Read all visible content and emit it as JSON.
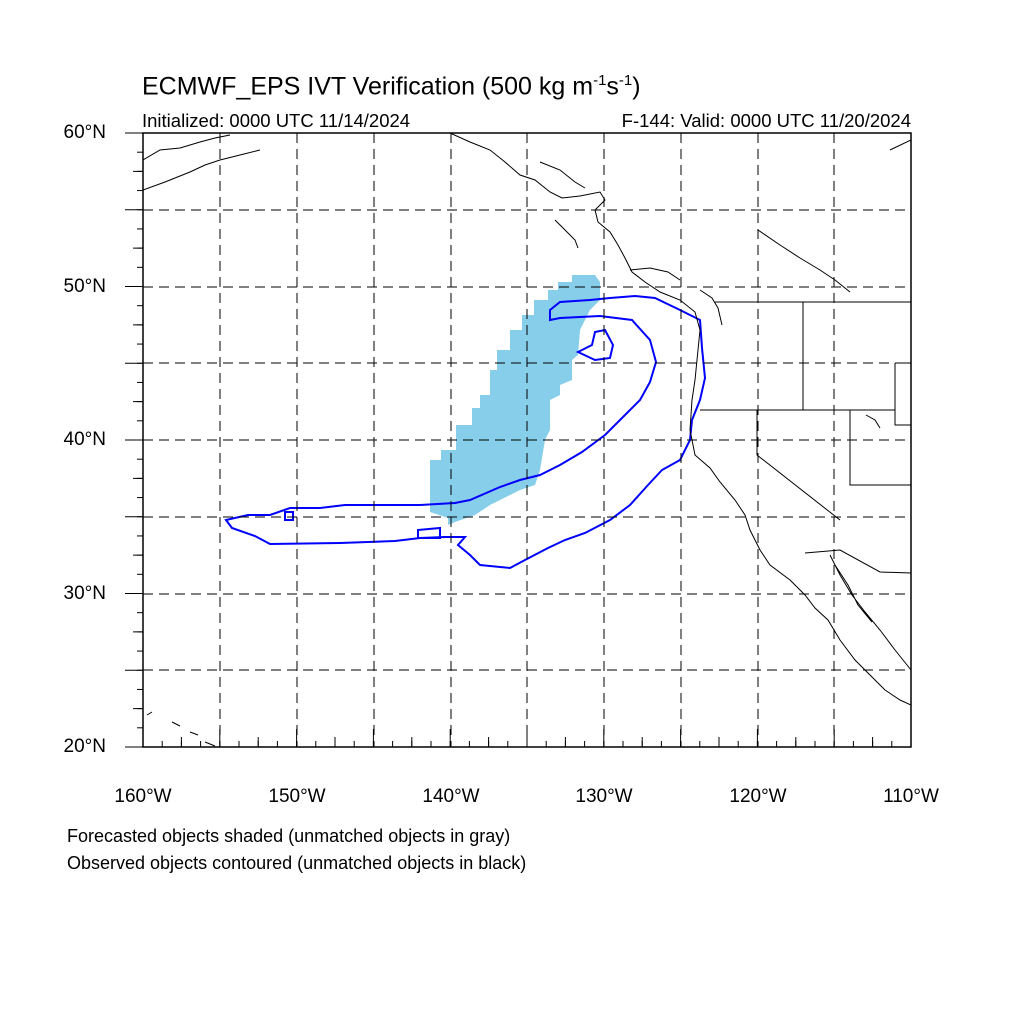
{
  "map": {
    "title_main": "ECMWF_EPS IVT Verification (500 kg m",
    "title_exp1": "-1",
    "title_mid": "s",
    "title_exp2": "-1",
    "title_end": ")",
    "init_label": "Initialized: 0000 UTC 11/14/2024",
    "valid_label": "F-144: Valid: 0000 UTC 11/20/2024",
    "extent": {
      "lon": [
        -160,
        -110
      ],
      "lat": [
        20,
        60
      ]
    },
    "lat_ticks": [
      "60°N",
      "50°N",
      "40°N",
      "30°N",
      "20°N"
    ],
    "lon_ticks": [
      "160°W",
      "150°W",
      "140°W",
      "130°W",
      "120°W",
      "110°W"
    ],
    "grid_lines": "dashed every 5°",
    "colors": {
      "forecast_fill": "#87ceeb",
      "observed_contour": "#0000ff",
      "coastline": "#000000"
    },
    "notes": [
      "Forecasted objects shaded (unmatched objects in gray)",
      "Observed objects contoured (unmatched objects in black)"
    ]
  }
}
